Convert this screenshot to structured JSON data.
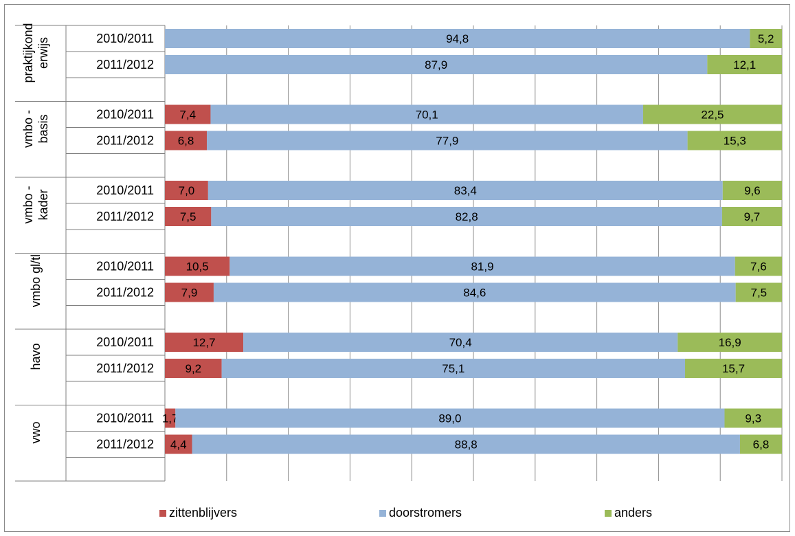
{
  "chart_data": {
    "type": "bar",
    "orientation": "horizontal",
    "stacked": "100%",
    "xlim": [
      0,
      100
    ],
    "grid": true,
    "legend_position": "bottom",
    "groups": [
      {
        "label": "praktijkonderwijs",
        "label_lines": [
          "praktijkond",
          "erwijs"
        ],
        "rows": [
          {
            "label": "2010/2011",
            "values": [
              0,
              94.8,
              5.2
            ],
            "labels": [
              "",
              "94,8",
              "5,2"
            ]
          },
          {
            "label": "2011/2012",
            "values": [
              0,
              87.9,
              12.1
            ],
            "labels": [
              "",
              "87,9",
              "12,1"
            ]
          }
        ]
      },
      {
        "label": "vmbo - basis",
        "label_lines": [
          "vmbo -",
          "basis"
        ],
        "rows": [
          {
            "label": "2010/2011",
            "values": [
              7.4,
              70.1,
              22.5
            ],
            "labels": [
              "7,4",
              "70,1",
              "22,5"
            ]
          },
          {
            "label": "2011/2012",
            "values": [
              6.8,
              77.9,
              15.3
            ],
            "labels": [
              "6,8",
              "77,9",
              "15,3"
            ]
          }
        ]
      },
      {
        "label": "vmbo - kader",
        "label_lines": [
          "vmbo -",
          "kader"
        ],
        "rows": [
          {
            "label": "2010/2011",
            "values": [
              7.0,
              83.4,
              9.6
            ],
            "labels": [
              "7,0",
              "83,4",
              "9,6"
            ]
          },
          {
            "label": "2011/2012",
            "values": [
              7.5,
              82.8,
              9.7
            ],
            "labels": [
              "7,5",
              "82,8",
              "9,7"
            ]
          }
        ]
      },
      {
        "label": "vmbo gl/tl",
        "label_lines": [
          "vmbo gl/tl"
        ],
        "rows": [
          {
            "label": "2010/2011",
            "values": [
              10.5,
              81.9,
              7.6
            ],
            "labels": [
              "10,5",
              "81,9",
              "7,6"
            ]
          },
          {
            "label": "2011/2012",
            "values": [
              7.9,
              84.6,
              7.5
            ],
            "labels": [
              "7,9",
              "84,6",
              "7,5"
            ]
          }
        ]
      },
      {
        "label": "havo",
        "label_lines": [
          "havo"
        ],
        "rows": [
          {
            "label": "2010/2011",
            "values": [
              12.7,
              70.4,
              16.9
            ],
            "labels": [
              "12,7",
              "70,4",
              "16,9"
            ]
          },
          {
            "label": "2011/2012",
            "values": [
              9.2,
              75.1,
              15.7
            ],
            "labels": [
              "9,2",
              "75,1",
              "15,7"
            ]
          }
        ]
      },
      {
        "label": "vwo",
        "label_lines": [
          "vwo"
        ],
        "rows": [
          {
            "label": "2010/2011",
            "values": [
              1.7,
              89.0,
              9.3
            ],
            "labels": [
              "1,7",
              "89,0",
              "9,3"
            ]
          },
          {
            "label": "2011/2012",
            "values": [
              4.4,
              88.8,
              6.8
            ],
            "labels": [
              "4,4",
              "88,8",
              "6,8"
            ]
          }
        ]
      }
    ],
    "series": [
      {
        "name": "zittenblijvers",
        "color": "#C0504D"
      },
      {
        "name": "doorstromers",
        "color": "#95B3D7"
      },
      {
        "name": "anders",
        "color": "#9BBB59"
      }
    ]
  }
}
